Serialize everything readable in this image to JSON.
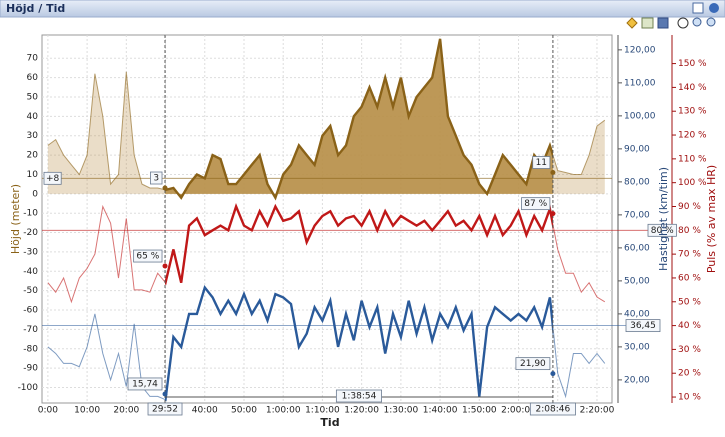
{
  "chart_data": {
    "type": "line",
    "title": "Höjd / Tid",
    "x_label": "Tid",
    "y_label": "Höjd (meter)",
    "y2_label": "Hastighet (km/tim)",
    "y3_label": "Puls (% av max HR)",
    "x": [
      0,
      120,
      240,
      360,
      480,
      600,
      720,
      840,
      960,
      1080,
      1200,
      1320,
      1440,
      1560,
      1680,
      1800,
      1920,
      2040,
      2160,
      2280,
      2400,
      2520,
      2640,
      2760,
      2880,
      3000,
      3120,
      3240,
      3360,
      3480,
      3600,
      3720,
      3840,
      3960,
      4080,
      4200,
      4320,
      4440,
      4560,
      4680,
      4800,
      4920,
      5040,
      5160,
      5280,
      5400,
      5520,
      5640,
      5760,
      5880,
      6000,
      6120,
      6240,
      6360,
      6480,
      6600,
      6720,
      6840,
      6960,
      7080,
      7200,
      7320,
      7440,
      7560,
      7680,
      7800,
      7920,
      8040,
      8160,
      8280,
      8400,
      8520
    ],
    "xlim": [
      -90,
      8630
    ],
    "xticks": [
      {
        "value": 0,
        "label": "0:00"
      },
      {
        "value": 600,
        "label": "10:00"
      },
      {
        "value": 1200,
        "label": "20:00"
      },
      {
        "value": 1800,
        "label": "30:00"
      },
      {
        "value": 2400,
        "label": "40:00"
      },
      {
        "value": 3000,
        "label": "50:00"
      },
      {
        "value": 3600,
        "label": "1:00:00"
      },
      {
        "value": 4200,
        "label": "1:10:00"
      },
      {
        "value": 4800,
        "label": "1:20:00"
      },
      {
        "value": 5400,
        "label": "1:30:00"
      },
      {
        "value": 6000,
        "label": "1:40:00"
      },
      {
        "value": 6600,
        "label": "1:50:00"
      },
      {
        "value": 7200,
        "label": "2:00:00"
      },
      {
        "value": 7800,
        "label": "2:10:00"
      },
      {
        "value": 8400,
        "label": "2:20:00"
      }
    ],
    "ylim": [
      -108,
      82
    ],
    "yticks": [
      70,
      60,
      50,
      40,
      30,
      20,
      10,
      0,
      -10,
      -20,
      -30,
      -40,
      -50,
      -60,
      -70,
      -80,
      -90,
      -100
    ],
    "y2lim": [
      13,
      124.5
    ],
    "y2ticks": [
      {
        "value": 120,
        "label": "120,00"
      },
      {
        "value": 110,
        "label": "110,00"
      },
      {
        "value": 100,
        "label": "100,00"
      },
      {
        "value": 90,
        "label": "90,00"
      },
      {
        "value": 80,
        "label": "80,00"
      },
      {
        "value": 70,
        "label": "70,00"
      },
      {
        "value": 60,
        "label": "60,00"
      },
      {
        "value": 50,
        "label": "50,00"
      },
      {
        "value": 40,
        "label": "40,00"
      },
      {
        "value": 30,
        "label": "30,00"
      },
      {
        "value": 20,
        "label": "20,00"
      }
    ],
    "y3lim": [
      7.5,
      162
    ],
    "y3ticks": [
      {
        "value": 150,
        "label": "150 %"
      },
      {
        "value": 140,
        "label": "140 %"
      },
      {
        "value": 130,
        "label": "130 %"
      },
      {
        "value": 120,
        "label": "120 %"
      },
      {
        "value": 110,
        "label": "110 %"
      },
      {
        "value": 100,
        "label": "100 %"
      },
      {
        "value": 90,
        "label": "90 %"
      },
      {
        "value": 80,
        "label": "80 %"
      },
      {
        "value": 70,
        "label": "70 %"
      },
      {
        "value": 60,
        "label": "60 %"
      },
      {
        "value": 50,
        "label": "50 %"
      },
      {
        "value": 40,
        "label": "40 %"
      },
      {
        "value": 30,
        "label": "30 %"
      },
      {
        "value": 20,
        "label": "20 %"
      },
      {
        "value": 10,
        "label": "10 %"
      }
    ],
    "grid": true,
    "series": [
      {
        "axis": "y",
        "color": "#8a6218",
        "fill": "#b8904a",
        "values": [
          25,
          28,
          20,
          15,
          10,
          20,
          62,
          40,
          5,
          10,
          63,
          20,
          5,
          3,
          3,
          2,
          3,
          -2,
          5,
          10,
          8,
          20,
          18,
          5,
          5,
          10,
          15,
          20,
          5,
          -2,
          10,
          15,
          25,
          20,
          15,
          30,
          35,
          20,
          25,
          40,
          45,
          55,
          45,
          60,
          45,
          60,
          40,
          50,
          55,
          60,
          80,
          40,
          30,
          20,
          15,
          5,
          0,
          10,
          20,
          15,
          10,
          5,
          20,
          15,
          25,
          12,
          11,
          10,
          10,
          20,
          35,
          38
        ]
      },
      {
        "axis": "y2",
        "color": "#2a5a9a",
        "values": [
          30,
          28,
          25,
          25,
          24,
          30,
          40,
          28,
          20,
          28,
          18,
          37,
          18,
          15,
          15,
          14,
          33,
          30,
          40,
          40,
          48,
          45,
          40,
          44,
          40,
          46,
          40,
          44,
          38,
          46,
          45,
          43,
          30,
          34,
          42,
          38,
          44,
          30,
          40,
          32,
          44,
          36,
          42,
          28,
          40,
          33,
          44,
          34,
          42,
          32,
          40,
          36,
          42,
          35,
          40,
          15,
          36,
          42,
          40,
          38,
          40,
          38,
          42,
          36,
          45,
          22,
          15,
          28,
          28,
          25,
          28,
          25
        ]
      },
      {
        "axis": "y3",
        "color": "#c01818",
        "values": [
          58,
          54,
          60,
          50,
          60,
          64,
          70,
          90,
          83,
          60,
          85,
          55,
          55,
          54,
          62,
          58,
          72,
          58,
          82,
          85,
          78,
          80,
          82,
          80,
          90,
          82,
          80,
          88,
          82,
          90,
          84,
          85,
          88,
          75,
          82,
          86,
          88,
          82,
          85,
          86,
          82,
          88,
          80,
          88,
          82,
          86,
          84,
          82,
          84,
          80,
          84,
          88,
          82,
          84,
          80,
          86,
          78,
          86,
          78,
          82,
          88,
          78,
          86,
          80,
          89,
          72,
          62,
          62,
          54,
          58,
          52,
          50
        ]
      }
    ],
    "cursors": [
      {
        "value": 1792,
        "label": "29:52"
      },
      {
        "value": 7726,
        "label": "2:08:46"
      }
    ],
    "duration": {
      "value": 5934,
      "label": "1:38:54"
    },
    "point_labels": [
      {
        "x": 1792,
        "axis": "y",
        "value": 3,
        "label": "3"
      },
      {
        "x": 7726,
        "axis": "y",
        "value": 11,
        "label": "11"
      },
      {
        "x": 1792,
        "axis": "y3",
        "value": 65,
        "label": "65 %"
      },
      {
        "x": 7726,
        "axis": "y3",
        "value": 87,
        "label": "87 %"
      },
      {
        "x": 1792,
        "axis": "y2",
        "value": 15.74,
        "label": "15,74"
      },
      {
        "x": 7726,
        "axis": "y2",
        "value": 21.9,
        "label": "21,90"
      }
    ],
    "reference_lines": [
      {
        "axis": "y",
        "value": 8,
        "label": "+8"
      },
      {
        "axis": "y3",
        "value": 80,
        "label": "80 %"
      },
      {
        "axis": "y2",
        "value": 36.45,
        "label": "36,45"
      }
    ]
  }
}
